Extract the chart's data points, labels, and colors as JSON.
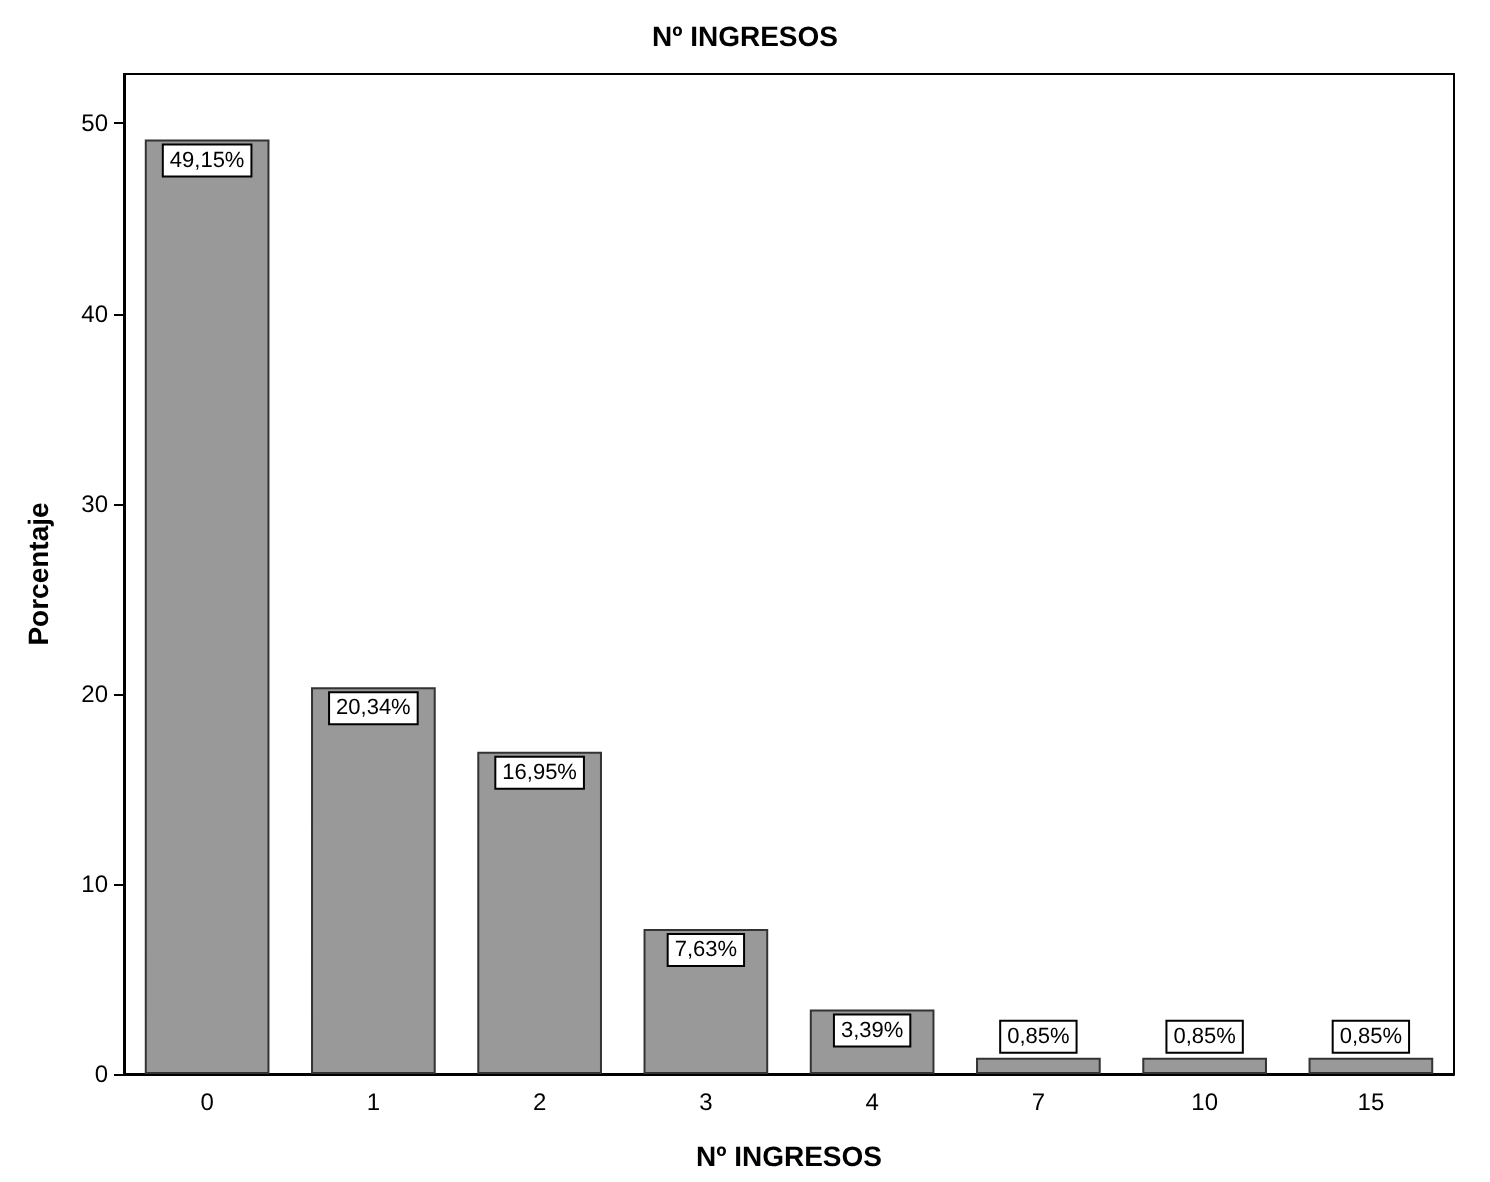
{
  "chart_data": {
    "type": "bar",
    "title": "Nº INGRESOS",
    "xlabel": "Nº INGRESOS",
    "ylabel": "Porcentaje",
    "categories": [
      "0",
      "1",
      "2",
      "3",
      "4",
      "7",
      "10",
      "15"
    ],
    "values": [
      49.15,
      20.34,
      16.95,
      7.63,
      3.39,
      0.85,
      0.85,
      0.85
    ],
    "value_labels": [
      "49,15%",
      "20,34%",
      "16,95%",
      "7,63%",
      "3,39%",
      "0,85%",
      "0,85%",
      "0,85%"
    ],
    "color": "#999999",
    "ylim": [
      0,
      52.6
    ],
    "yticks": [
      0,
      10,
      20,
      30,
      40,
      50
    ]
  }
}
